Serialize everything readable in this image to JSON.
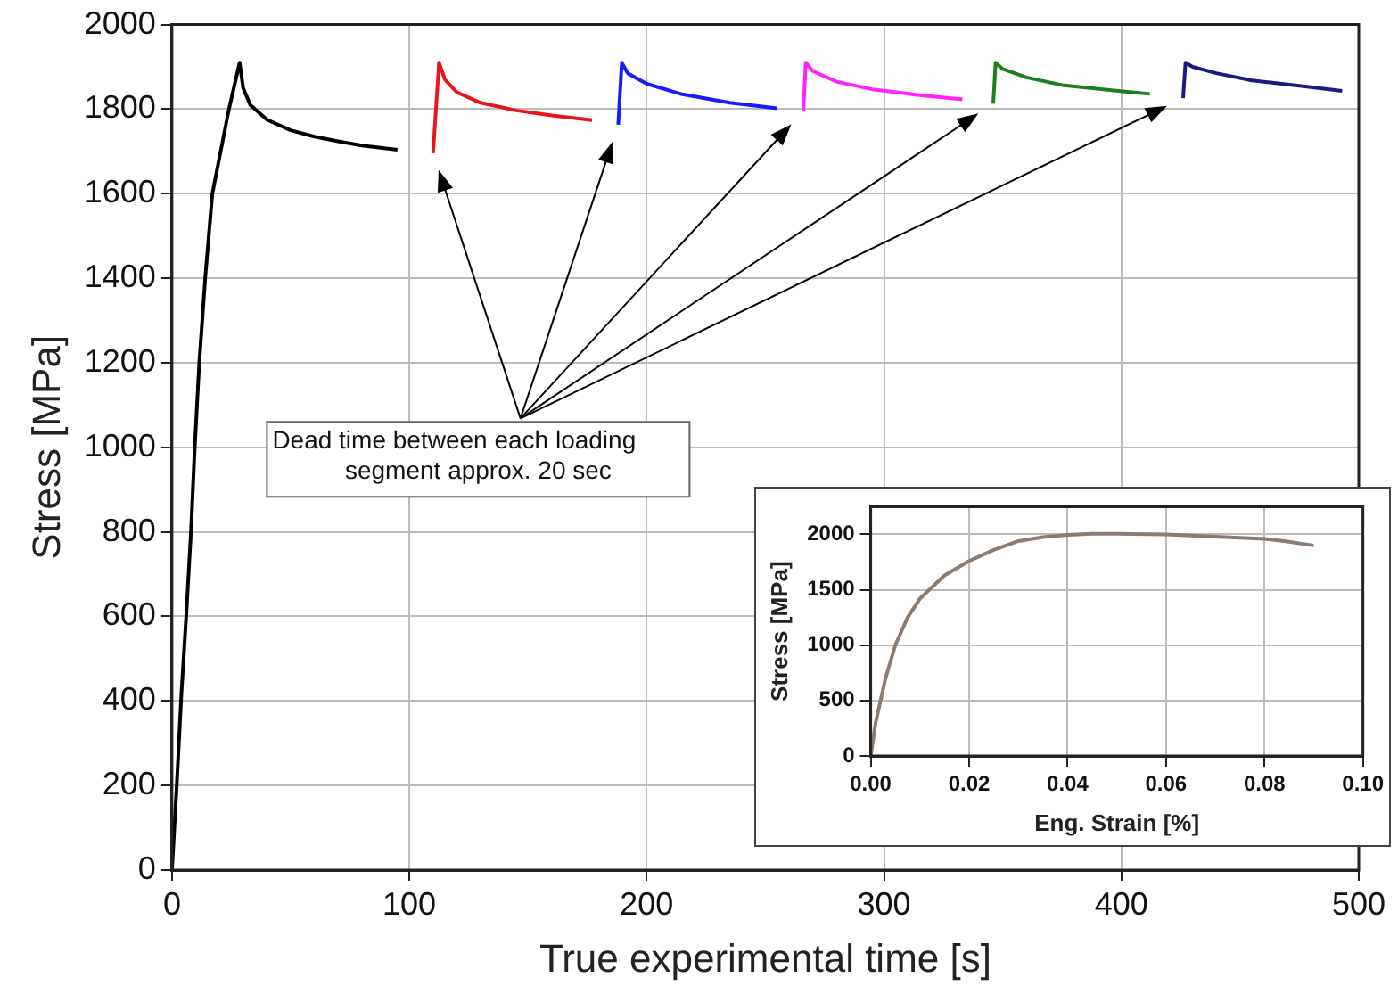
{
  "chart_data": [
    {
      "type": "line",
      "xlabel": "True experimental time [s]",
      "ylabel": "Stress [MPa]",
      "xlim": [
        0,
        500
      ],
      "xticks": [
        0,
        100,
        200,
        300,
        400,
        500
      ],
      "ylim": [
        0,
        2000
      ],
      "yticks": [
        0,
        200,
        400,
        600,
        800,
        1000,
        1200,
        1400,
        1600,
        1800,
        2000
      ],
      "grid": true,
      "marker": "none",
      "annotations": [
        "Dead time between each loading segment approx. 20 sec"
      ],
      "series": [
        {
          "color": "#000000",
          "x": [
            0,
            2,
            4,
            6,
            8,
            9.6,
            11.5,
            14,
            17,
            24,
            28.5,
            30,
            33,
            40,
            50,
            60,
            70,
            80,
            95
          ],
          "values": [
            0,
            200,
            420,
            600,
            800,
            1000,
            1200,
            1400,
            1600,
            1800,
            1910,
            1850,
            1810,
            1775,
            1750,
            1735,
            1724,
            1714,
            1704
          ]
        },
        {
          "color": "#e8141c",
          "x": [
            110,
            112.5,
            115,
            120,
            130,
            145,
            160,
            177
          ],
          "values": [
            1696,
            1910,
            1870,
            1840,
            1815,
            1797,
            1785,
            1774
          ]
        },
        {
          "color": "#1a1aff",
          "x": [
            188,
            189.5,
            192,
            200,
            215,
            235,
            255
          ],
          "values": [
            1763,
            1910,
            1885,
            1860,
            1835,
            1815,
            1802
          ]
        },
        {
          "color": "#ff22ff",
          "x": [
            266,
            267,
            270,
            280,
            295,
            315,
            333
          ],
          "values": [
            1795,
            1910,
            1890,
            1865,
            1847,
            1833,
            1823
          ]
        },
        {
          "color": "#1a801a",
          "x": [
            346,
            347,
            350,
            360,
            375,
            395,
            412
          ],
          "values": [
            1813,
            1910,
            1895,
            1875,
            1857,
            1845,
            1836
          ]
        },
        {
          "color": "#1a1a80",
          "x": [
            426,
            427,
            430,
            440,
            455,
            475,
            493
          ],
          "values": [
            1826,
            1910,
            1900,
            1885,
            1868,
            1855,
            1843
          ]
        }
      ]
    },
    {
      "type": "line",
      "xlabel": "Eng. Strain [%]",
      "ylabel": "Stress [MPa]",
      "xlim": [
        0,
        0.1
      ],
      "xticks": [
        {
          "value": 0,
          "label": "0.00"
        },
        {
          "value": 0.02,
          "label": "0.02"
        },
        {
          "value": 0.04,
          "label": "0.04"
        },
        {
          "value": 0.06,
          "label": "0.06"
        },
        {
          "value": 0.08,
          "label": "0.08"
        },
        {
          "value": 0.1,
          "label": "0.10"
        }
      ],
      "ylim": [
        0,
        2250
      ],
      "yticks": [
        0,
        500,
        1000,
        1500,
        2000
      ],
      "grid": true,
      "marker": "none",
      "series": [
        {
          "color": "#8b7b70",
          "x": [
            0,
            0.001,
            0.003,
            0.005,
            0.0075,
            0.01,
            0.015,
            0.02,
            0.025,
            0.03,
            0.035,
            0.04,
            0.045,
            0.05,
            0.06,
            0.07,
            0.08,
            0.084,
            0.09
          ],
          "values": [
            0,
            300,
            700,
            1000,
            1250,
            1420,
            1630,
            1760,
            1860,
            1940,
            1975,
            1995,
            2005,
            2005,
            2000,
            1980,
            1960,
            1940,
            1900
          ]
        }
      ]
    }
  ]
}
